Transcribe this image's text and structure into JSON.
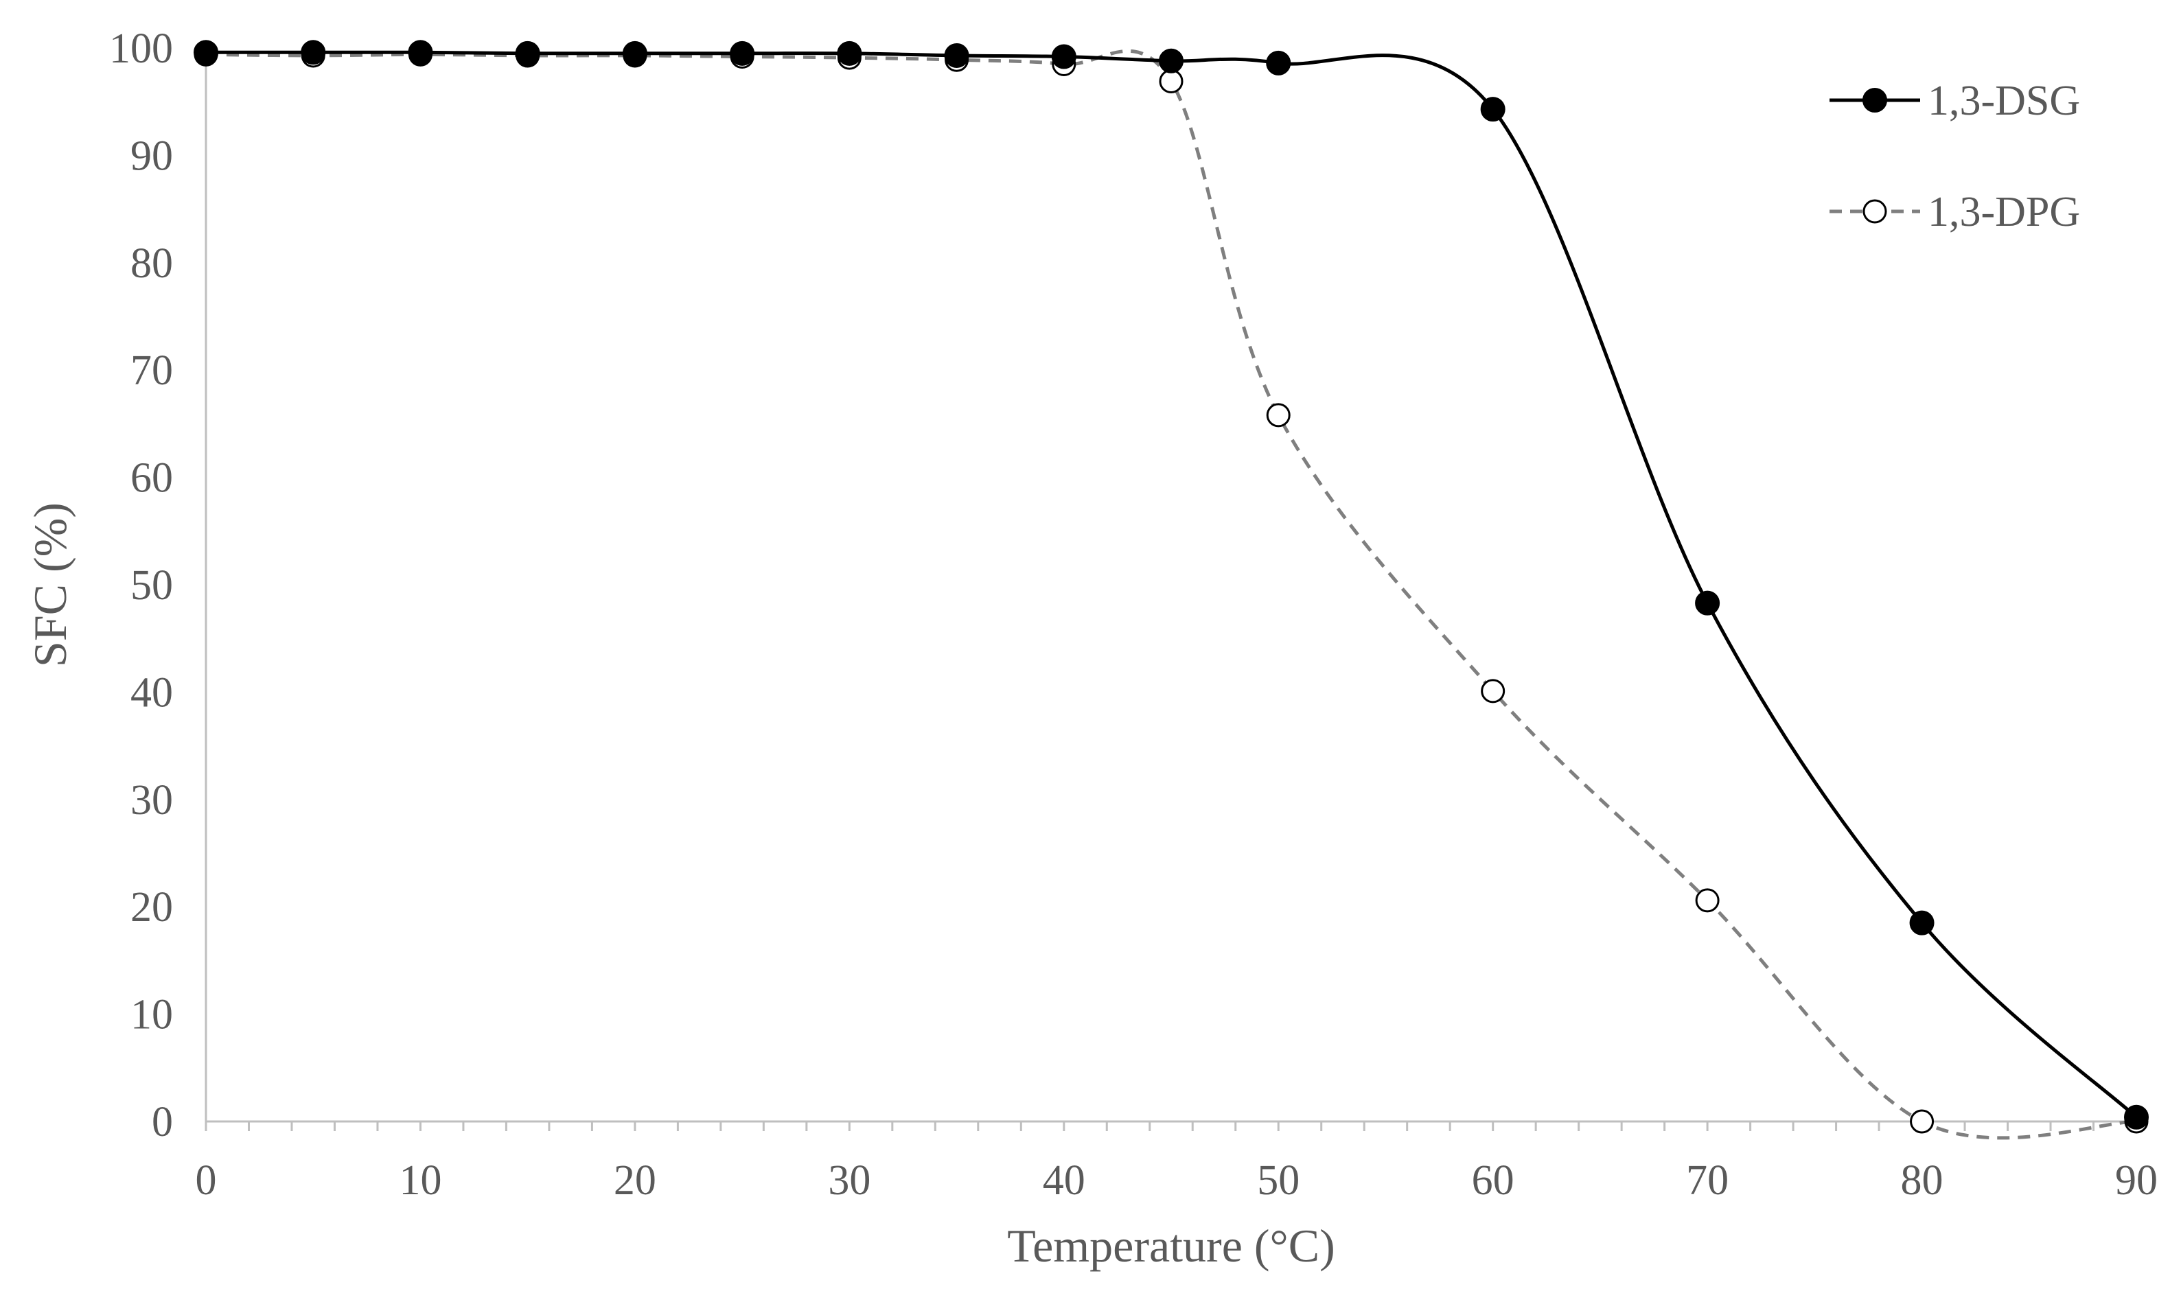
{
  "chart_data": {
    "type": "line",
    "title": "",
    "xlabel": "Temperature (°C)",
    "ylabel": "SFC (%)",
    "xlim": [
      0,
      90
    ],
    "ylim": [
      0,
      100
    ],
    "x_ticks": [
      0,
      10,
      20,
      30,
      40,
      50,
      60,
      70,
      80,
      90
    ],
    "y_ticks": [
      0,
      10,
      20,
      30,
      40,
      50,
      60,
      70,
      80,
      90,
      100
    ],
    "x_minor_step": 2,
    "grid": false,
    "legend_position": "top-right",
    "series": [
      {
        "name": "1,3-DSG",
        "color": "#000000",
        "line_style": "solid",
        "marker": "filled-circle",
        "x": [
          0,
          5,
          10,
          15,
          20,
          25,
          30,
          35,
          40,
          45,
          50,
          60,
          70,
          80,
          90
        ],
        "values": [
          99.6,
          99.6,
          99.6,
          99.5,
          99.5,
          99.5,
          99.5,
          99.3,
          99.2,
          98.8,
          98.6,
          94.3,
          48.3,
          18.5,
          0.4
        ]
      },
      {
        "name": "1,3-DPG",
        "color": "#7f7f7f",
        "line_style": "dashed",
        "marker": "open-circle",
        "x": [
          0,
          5,
          10,
          15,
          20,
          25,
          30,
          35,
          40,
          45,
          50,
          60,
          70,
          80,
          90
        ],
        "values": [
          99.4,
          99.3,
          99.4,
          99.3,
          99.3,
          99.2,
          99.1,
          98.9,
          98.5,
          96.9,
          65.8,
          40.1,
          20.6,
          0.0,
          0.0
        ]
      }
    ]
  }
}
